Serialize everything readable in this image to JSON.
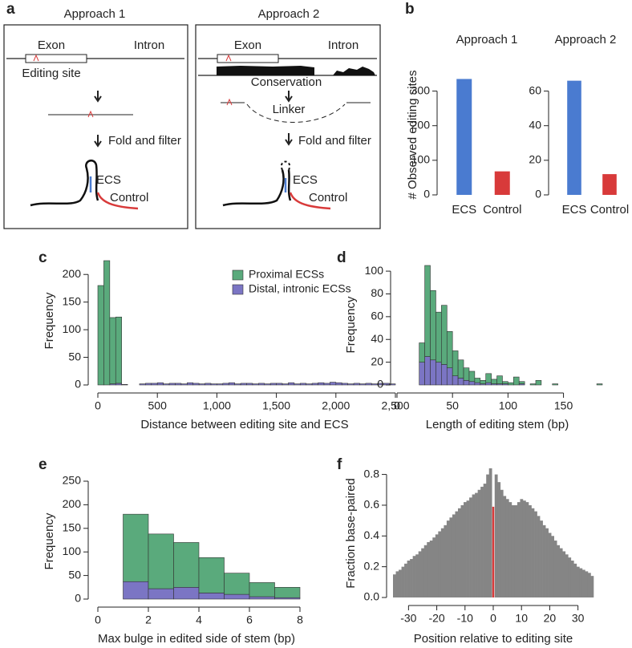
{
  "panel_labels": [
    "a",
    "b",
    "c",
    "d",
    "e",
    "f"
  ],
  "diagrams": [
    {
      "title": "Approach 1",
      "exon": "Exon",
      "intron": "Intron",
      "editing_site": "Editing site",
      "fold_and_filter": "Fold and filter",
      "ecs": "ECS",
      "control": "Control"
    },
    {
      "title": "Approach 2",
      "exon": "Exon",
      "intron": "Intron",
      "conservation": "Conservation",
      "linker": "Linker",
      "fold_and_filter": "Fold and filter",
      "ecs": "ECS",
      "control": "Control"
    }
  ],
  "chart_data": [
    {
      "type": "bar",
      "title": "Approach 1",
      "ylabel": "# Observed editing sites",
      "categories": [
        "ECS",
        "Control"
      ],
      "values": [
        335,
        68
      ],
      "colors": [
        "#4a7bd0",
        "#d83a3a"
      ],
      "ylim": [
        0,
        350
      ],
      "yticks": [
        0,
        100,
        200,
        300
      ]
    },
    {
      "type": "bar",
      "title": "Approach 2",
      "categories": [
        "ECS",
        "Control"
      ],
      "values": [
        66,
        12
      ],
      "colors": [
        "#4a7bd0",
        "#d83a3a"
      ],
      "ylim": [
        0,
        70
      ],
      "yticks": [
        0,
        20,
        40,
        60
      ]
    },
    {
      "type": "histogram",
      "xlabel": "Distance between editing site and ECS",
      "ylabel": "Frequency",
      "legend": true,
      "bins": [
        0,
        50,
        100,
        150,
        200,
        250,
        300,
        350,
        400,
        450,
        500,
        550,
        600,
        650,
        700,
        750,
        800,
        850,
        900,
        950,
        1000,
        1050,
        1100,
        1150,
        1200,
        1250,
        1300,
        1350,
        1400,
        1450,
        1500,
        1550,
        1600,
        1650,
        1700,
        1750,
        1800,
        1850,
        1900,
        1950,
        2000,
        2050,
        2100,
        2150,
        2200,
        2250,
        2300,
        2350,
        2400,
        2450,
        2500
      ],
      "series": [
        {
          "name": "Proximal ECSs",
          "color": "#5aaa7c",
          "values": [
            180,
            225,
            120,
            120,
            0,
            0,
            0,
            0,
            0,
            0,
            0,
            0,
            0,
            0,
            0,
            0,
            0,
            0,
            0,
            0,
            0,
            0,
            0,
            0,
            0,
            0,
            0,
            0,
            0,
            0,
            0,
            0,
            0,
            0,
            0,
            0,
            0,
            0,
            0,
            0,
            0,
            0,
            0,
            0,
            0,
            0,
            0,
            0,
            0,
            0
          ]
        },
        {
          "name": "Distal, intronic ECSs",
          "color": "#7b75c4",
          "values": [
            0,
            0,
            2,
            3,
            1,
            0,
            0,
            2,
            3,
            3,
            4,
            2,
            3,
            3,
            2,
            4,
            3,
            2,
            3,
            2,
            2,
            3,
            4,
            2,
            3,
            3,
            2,
            3,
            2,
            3,
            3,
            2,
            4,
            2,
            3,
            2,
            3,
            4,
            3,
            5,
            4,
            3,
            2,
            3,
            2,
            3,
            2,
            3,
            3,
            2
          ]
        }
      ],
      "xlim": [
        0,
        2500
      ],
      "xticks": [
        0,
        500,
        {
          "value": 1000,
          "label": "1,000"
        },
        {
          "value": 1500,
          "label": "1,500"
        },
        {
          "value": 2000,
          "label": "2,000"
        },
        {
          "value": 2500,
          "label": "2,500"
        }
      ],
      "ylim": [
        0,
        225
      ],
      "yticks": [
        0,
        50,
        100,
        150,
        200
      ]
    },
    {
      "type": "histogram",
      "xlabel": "Length of editing stem (bp)",
      "ylabel": "Frequency",
      "legend": false,
      "bins": [
        20,
        25,
        30,
        35,
        40,
        45,
        50,
        55,
        60,
        65,
        70,
        75,
        80,
        85,
        90,
        95,
        100,
        105,
        110,
        115,
        120,
        125,
        130,
        135,
        140,
        145,
        150,
        155,
        160,
        165,
        170,
        175,
        180,
        185
      ],
      "series": [
        {
          "name": "Proximal ECSs",
          "color": "#5aaa7c",
          "values": [
            17,
            80,
            61,
            44,
            52,
            32,
            22,
            16,
            11,
            9,
            4,
            3,
            8,
            4,
            7,
            2,
            2,
            7,
            2,
            0,
            1,
            4,
            0,
            0,
            1,
            0,
            0,
            0,
            0,
            0,
            0,
            0,
            1
          ]
        },
        {
          "name": "Distal, intronic ECSs",
          "color": "#7b75c4",
          "values": [
            20,
            25,
            22,
            20,
            18,
            15,
            8,
            6,
            4,
            3,
            2,
            1,
            2,
            1,
            1,
            1,
            0,
            0,
            1,
            0,
            0,
            0,
            0,
            0,
            0,
            0,
            0,
            0,
            0,
            0,
            0,
            0,
            0
          ]
        }
      ],
      "xlim": [
        0,
        185
      ],
      "xticks": [
        0,
        50,
        100,
        150
      ],
      "ylim": [
        0,
        105
      ],
      "yticks": [
        0,
        20,
        40,
        60,
        80,
        100
      ]
    },
    {
      "type": "histogram",
      "xlabel": "Max bulge in edited side of stem (bp)",
      "ylabel": "Frequency",
      "legend": false,
      "bins": [
        1,
        2,
        3,
        4,
        5,
        6,
        7,
        8
      ],
      "series": [
        {
          "name": "Proximal ECSs",
          "color": "#5aaa7c",
          "values": [
            143,
            116,
            95,
            75,
            45,
            30,
            22
          ]
        },
        {
          "name": "Distal, intronic ECSs",
          "color": "#7b75c4",
          "values": [
            37,
            22,
            25,
            13,
            10,
            5,
            3
          ]
        }
      ],
      "xlim": [
        0,
        8
      ],
      "xticks": [
        0,
        2,
        4,
        6,
        8
      ],
      "ylim": [
        0,
        250
      ],
      "yticks": [
        0,
        50,
        100,
        150,
        200,
        250
      ]
    },
    {
      "type": "column",
      "xlabel": "Position relative to editing site",
      "ylabel": "Fraction base-paired",
      "x": [
        -35,
        -34,
        -33,
        -32,
        -31,
        -30,
        -29,
        -28,
        -27,
        -26,
        -25,
        -24,
        -23,
        -22,
        -21,
        -20,
        -19,
        -18,
        -17,
        -16,
        -15,
        -14,
        -13,
        -12,
        -11,
        -10,
        -9,
        -8,
        -7,
        -6,
        -5,
        -4,
        -3,
        -2,
        -1,
        0,
        1,
        2,
        3,
        4,
        5,
        6,
        7,
        8,
        9,
        10,
        11,
        12,
        13,
        14,
        15,
        16,
        17,
        18,
        19,
        20,
        21,
        22,
        23,
        24,
        25,
        26,
        27,
        28,
        29,
        30,
        31,
        32,
        33,
        34,
        35
      ],
      "values": [
        0.15,
        0.17,
        0.18,
        0.2,
        0.22,
        0.24,
        0.25,
        0.27,
        0.28,
        0.3,
        0.32,
        0.34,
        0.36,
        0.37,
        0.39,
        0.41,
        0.43,
        0.45,
        0.47,
        0.5,
        0.52,
        0.54,
        0.56,
        0.58,
        0.6,
        0.62,
        0.63,
        0.65,
        0.67,
        0.68,
        0.7,
        0.72,
        0.74,
        0.8,
        0.84,
        0.59,
        0.8,
        0.75,
        0.7,
        0.66,
        0.64,
        0.62,
        0.6,
        0.6,
        0.62,
        0.64,
        0.63,
        0.62,
        0.6,
        0.58,
        0.56,
        0.53,
        0.5,
        0.47,
        0.45,
        0.42,
        0.4,
        0.37,
        0.34,
        0.32,
        0.3,
        0.28,
        0.26,
        0.24,
        0.22,
        0.2,
        0.19,
        0.18,
        0.17,
        0.16,
        0.14
      ],
      "color": "#858585",
      "highlight": {
        "x": 0,
        "color": "#d83a3a"
      },
      "xlim": [
        -35.5,
        35.5
      ],
      "xticks": [
        -30,
        -20,
        -10,
        0,
        10,
        20,
        30
      ],
      "ylim": [
        0,
        0.85
      ],
      "yticks": [
        {
          "value": 0,
          "label": "0.0"
        },
        0.2,
        0.4,
        0.6,
        0.8
      ]
    }
  ]
}
